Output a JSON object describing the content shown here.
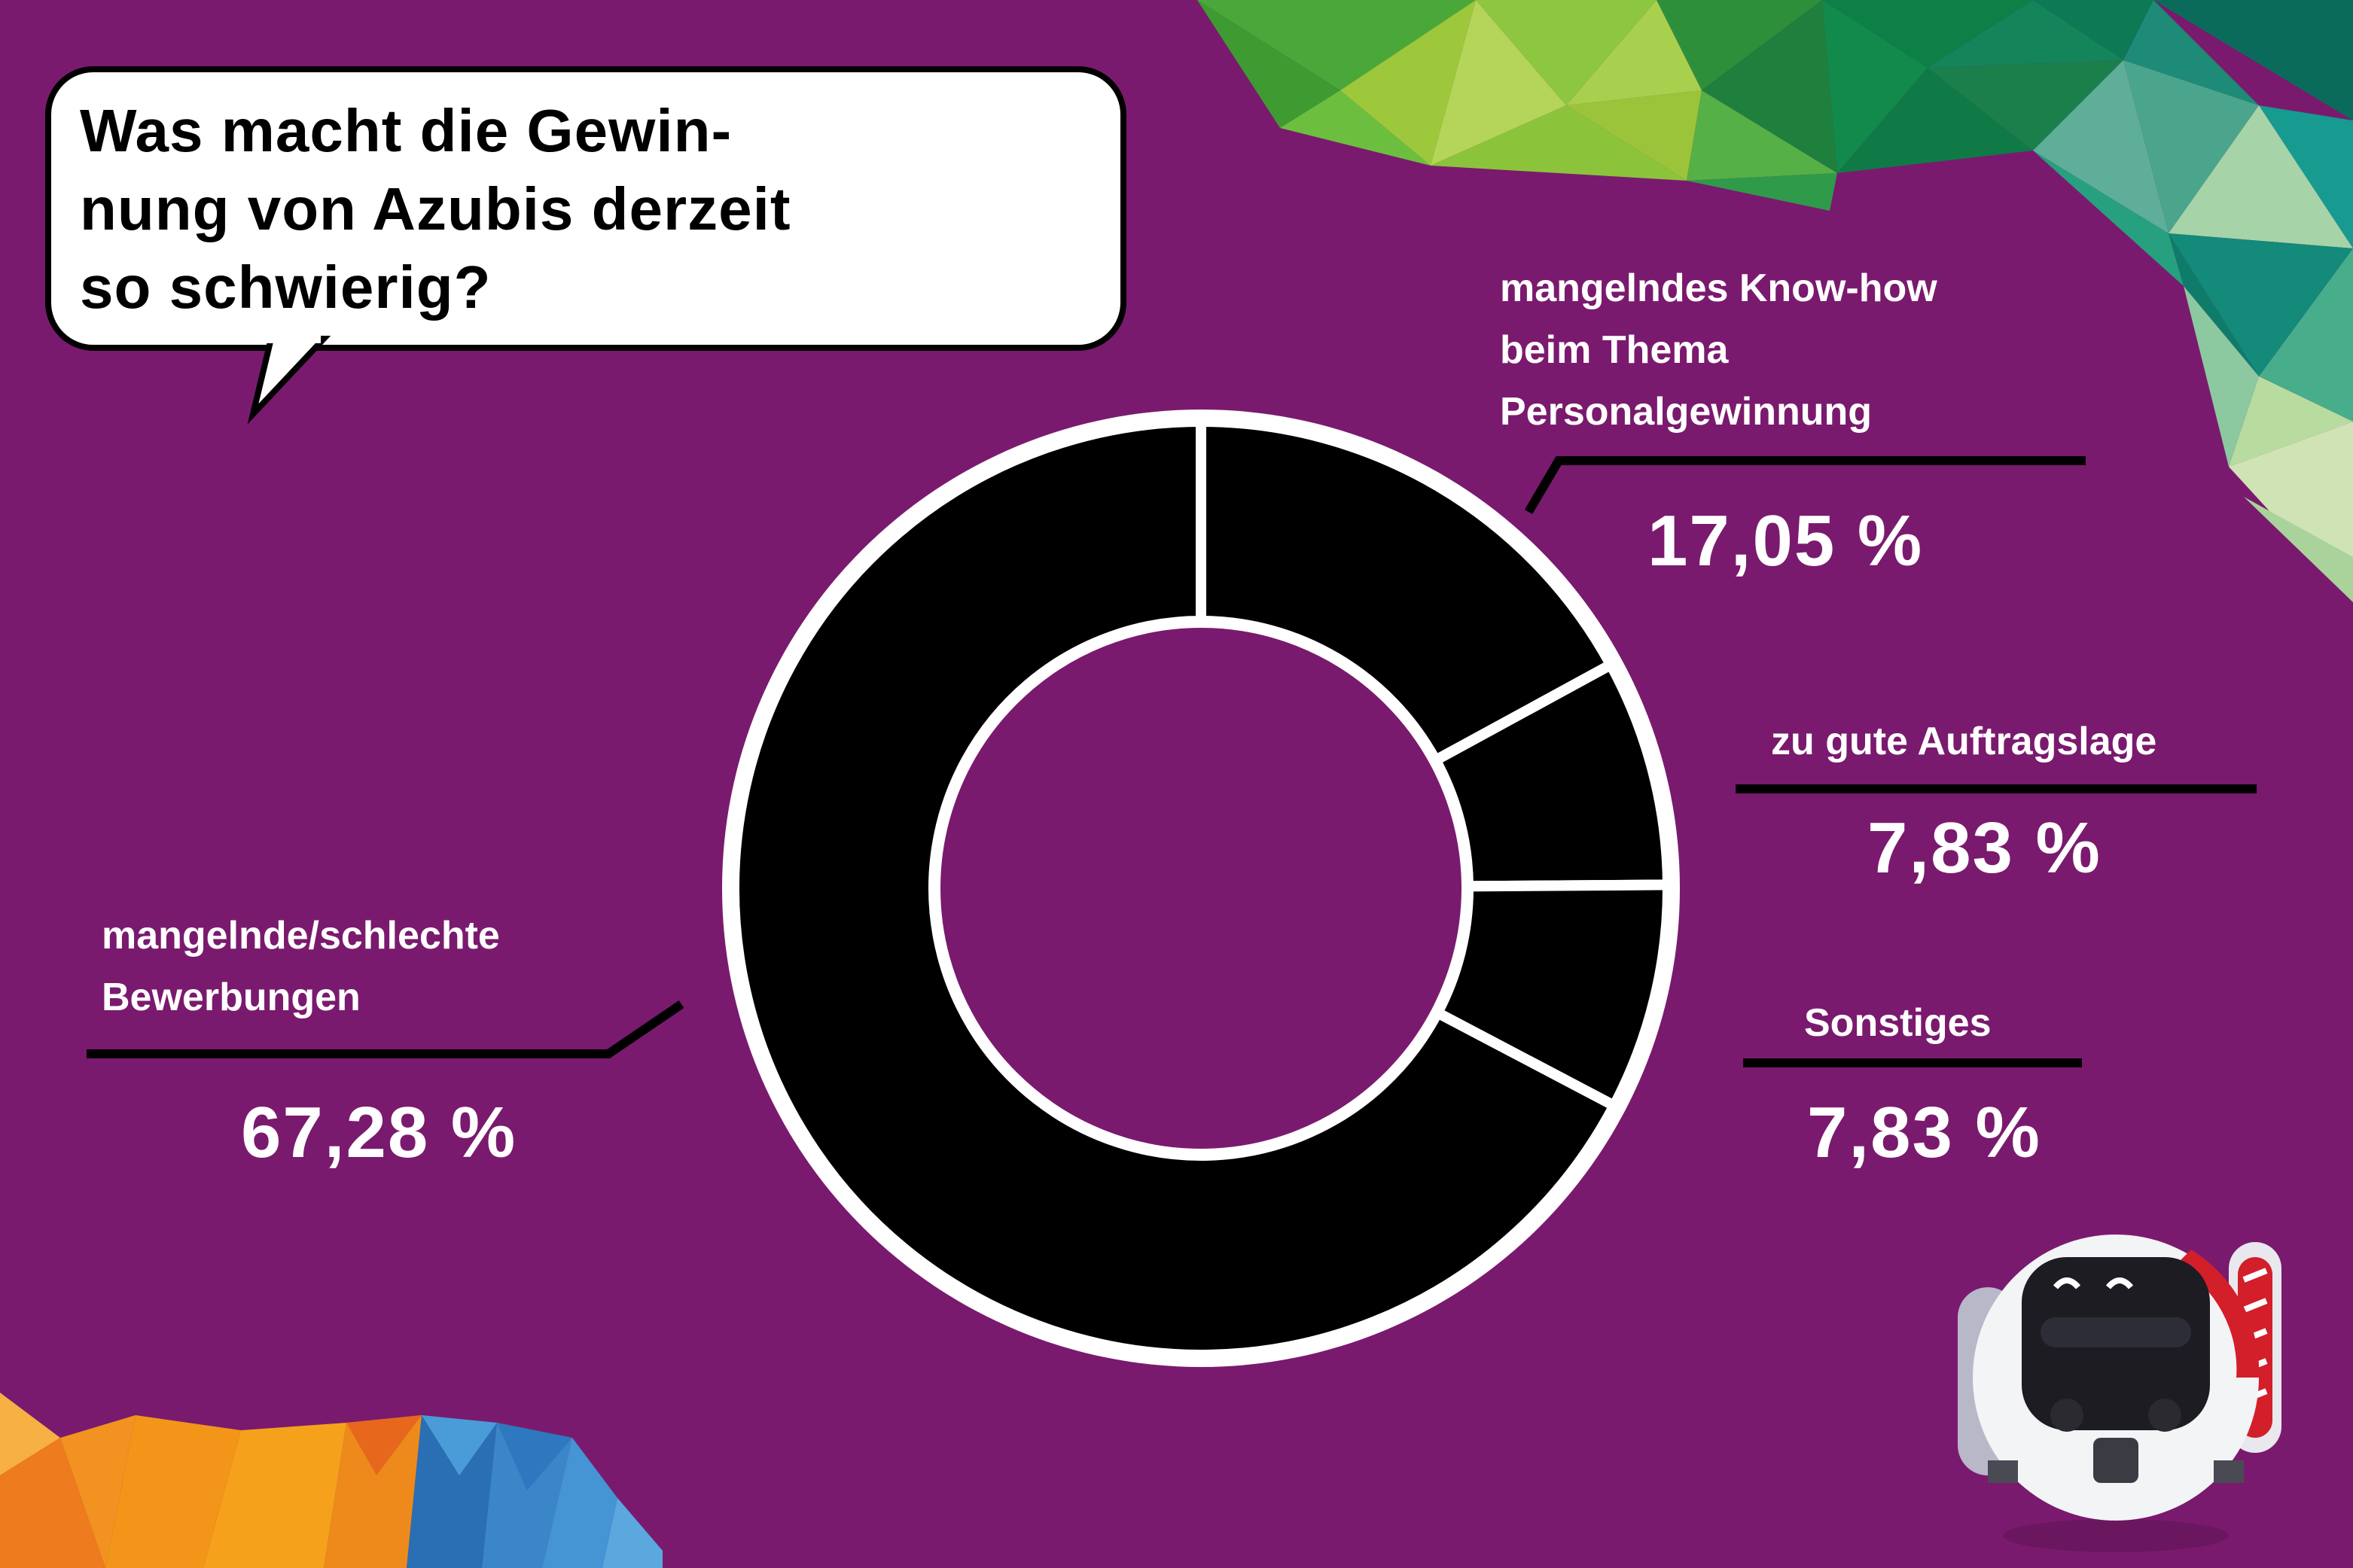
{
  "title": "Was macht die Gewin-\nnung von Azubis derzeit\nso schwierig?",
  "colors": {
    "background": "#7a1a6e",
    "ring": "#000000",
    "ring_outline": "#ffffff",
    "text": "#ffffff",
    "bubble": "#ffffff"
  },
  "chart_data": {
    "type": "pie",
    "style": "donut",
    "title": "Was macht die Gewinnung von Azubis derzeit so schwierig?",
    "unit": "%",
    "slices": [
      {
        "label": "mangelndes Know-how\nbeim Thema\nPersonalgewinnung",
        "value": 17.05,
        "display": "17,05 %"
      },
      {
        "label": "zu gute Auftragslage",
        "value": 7.83,
        "display": "7,83 %"
      },
      {
        "label": "Sonstiges",
        "value": 7.83,
        "display": "7,83 %"
      },
      {
        "label": "mangelnde/schlechte\nBewerbungen",
        "value": 67.28,
        "display": "67,28 %"
      }
    ]
  }
}
